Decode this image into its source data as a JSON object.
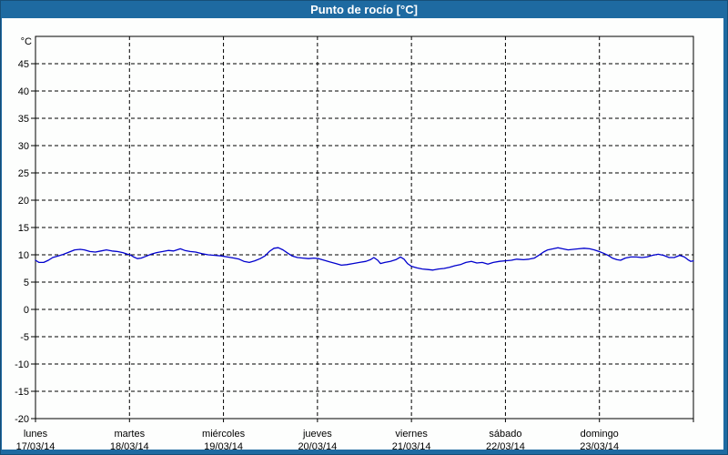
{
  "window": {
    "title": "Punto de rocío [°C]"
  },
  "chart_data": {
    "type": "line",
    "title": "Punto de rocío [°C]",
    "ylabel": "°C",
    "xlabel": "",
    "ylim": [
      -20,
      50
    ],
    "yticks": [
      45,
      40,
      35,
      30,
      25,
      20,
      15,
      10,
      5,
      0,
      -5,
      -10,
      -15,
      -20
    ],
    "grid": "dashed",
    "legend": "none",
    "x_total_hours": 168,
    "x_labels": [
      {
        "day": "lunes",
        "date": "17/03/14"
      },
      {
        "day": "martes",
        "date": "18/03/14"
      },
      {
        "day": "miércoles",
        "date": "19/03/14"
      },
      {
        "day": "jueves",
        "date": "20/03/14"
      },
      {
        "day": "viernes",
        "date": "21/03/14"
      },
      {
        "day": "sábado",
        "date": "22/03/14"
      },
      {
        "day": "domingo",
        "date": "23/03/14"
      }
    ],
    "colors": {
      "frame_blue": "#1e6aa1",
      "title_text": "#ffffff",
      "plot_bg": "#fdfefd",
      "grid": "#000000",
      "axis": "#000000",
      "line": "#0000cd"
    },
    "series": [
      {
        "name": "Punto de rocío",
        "points": [
          [
            0,
            9.0
          ],
          [
            0.9,
            8.6
          ],
          [
            2.1,
            8.6
          ],
          [
            3.3,
            9.0
          ],
          [
            4.4,
            9.5
          ],
          [
            5.8,
            9.8
          ],
          [
            7.2,
            10.1
          ],
          [
            8.6,
            10.5
          ],
          [
            10,
            10.9
          ],
          [
            11.4,
            11.0
          ],
          [
            12.5,
            10.9
          ],
          [
            13.9,
            10.6
          ],
          [
            15.3,
            10.5
          ],
          [
            16.7,
            10.7
          ],
          [
            18.1,
            10.9
          ],
          [
            19.5,
            10.7
          ],
          [
            20.9,
            10.6
          ],
          [
            22.3,
            10.4
          ],
          [
            23.5,
            10.1
          ],
          [
            24.2,
            10.0
          ],
          [
            25.1,
            9.6
          ],
          [
            26,
            9.3
          ],
          [
            27,
            9.4
          ],
          [
            28.1,
            9.7
          ],
          [
            29.5,
            10.1
          ],
          [
            30.9,
            10.4
          ],
          [
            32.5,
            10.6
          ],
          [
            33.9,
            10.8
          ],
          [
            35.3,
            10.7
          ],
          [
            37,
            11.1
          ],
          [
            38.1,
            10.8
          ],
          [
            39.5,
            10.6
          ],
          [
            40.9,
            10.5
          ],
          [
            42.5,
            10.2
          ],
          [
            44.1,
            10.0
          ],
          [
            45.8,
            9.9
          ],
          [
            47.4,
            9.8
          ],
          [
            49,
            9.6
          ],
          [
            50.7,
            9.4
          ],
          [
            52,
            9.2
          ],
          [
            53.2,
            8.8
          ],
          [
            54.6,
            8.6
          ],
          [
            56,
            8.9
          ],
          [
            57.4,
            9.3
          ],
          [
            58.6,
            9.8
          ],
          [
            59.7,
            10.6
          ],
          [
            60.9,
            11.2
          ],
          [
            62,
            11.3
          ],
          [
            63.2,
            10.9
          ],
          [
            64.4,
            10.3
          ],
          [
            65.5,
            9.8
          ],
          [
            66.9,
            9.5
          ],
          [
            68.3,
            9.4
          ],
          [
            69.7,
            9.3
          ],
          [
            71.1,
            9.4
          ],
          [
            72.3,
            9.3
          ],
          [
            73.7,
            9.0
          ],
          [
            75.1,
            8.7
          ],
          [
            76.7,
            8.4
          ],
          [
            78.1,
            8.1
          ],
          [
            79.5,
            8.2
          ],
          [
            81.1,
            8.4
          ],
          [
            82.7,
            8.6
          ],
          [
            84.4,
            8.8
          ],
          [
            85.5,
            9.1
          ],
          [
            86.4,
            9.5
          ],
          [
            87.4,
            9.0
          ],
          [
            88.1,
            8.4
          ],
          [
            89.2,
            8.6
          ],
          [
            90.6,
            8.8
          ],
          [
            92,
            9.1
          ],
          [
            93.2,
            9.6
          ],
          [
            94.1,
            9.2
          ],
          [
            95,
            8.4
          ],
          [
            96,
            7.9
          ],
          [
            97.4,
            7.6
          ],
          [
            98.8,
            7.4
          ],
          [
            100.2,
            7.3
          ],
          [
            101.5,
            7.2
          ],
          [
            102.9,
            7.4
          ],
          [
            104.3,
            7.5
          ],
          [
            105.7,
            7.7
          ],
          [
            107.1,
            8.0
          ],
          [
            108.5,
            8.2
          ],
          [
            109.9,
            8.6
          ],
          [
            111.3,
            8.8
          ],
          [
            112.7,
            8.5
          ],
          [
            114.1,
            8.6
          ],
          [
            115.5,
            8.3
          ],
          [
            116.9,
            8.6
          ],
          [
            118.5,
            8.8
          ],
          [
            119.9,
            8.9
          ],
          [
            121.5,
            9.0
          ],
          [
            122.9,
            9.2
          ],
          [
            124.6,
            9.1
          ],
          [
            126,
            9.2
          ],
          [
            127.4,
            9.4
          ],
          [
            128.5,
            9.9
          ],
          [
            129.7,
            10.5
          ],
          [
            130.8,
            10.9
          ],
          [
            132.2,
            11.1
          ],
          [
            133.4,
            11.3
          ],
          [
            134.6,
            11.1
          ],
          [
            136,
            10.9
          ],
          [
            137.3,
            11.0
          ],
          [
            138.7,
            11.1
          ],
          [
            140.1,
            11.2
          ],
          [
            141.5,
            11.1
          ],
          [
            142.7,
            10.9
          ],
          [
            143.9,
            10.6
          ],
          [
            145,
            10.3
          ],
          [
            146.2,
            9.9
          ],
          [
            147.3,
            9.4
          ],
          [
            148.5,
            9.1
          ],
          [
            149.4,
            9.0
          ],
          [
            150.6,
            9.4
          ],
          [
            152,
            9.6
          ],
          [
            153.4,
            9.6
          ],
          [
            154.8,
            9.5
          ],
          [
            156.1,
            9.6
          ],
          [
            157.5,
            9.9
          ],
          [
            159,
            10.1
          ],
          [
            160.4,
            9.9
          ],
          [
            161.8,
            9.5
          ],
          [
            163.1,
            9.5
          ],
          [
            164.5,
            9.9
          ],
          [
            165.7,
            9.6
          ],
          [
            166.6,
            9.1
          ],
          [
            167.3,
            8.8
          ],
          [
            168,
            8.9
          ]
        ]
      }
    ]
  }
}
